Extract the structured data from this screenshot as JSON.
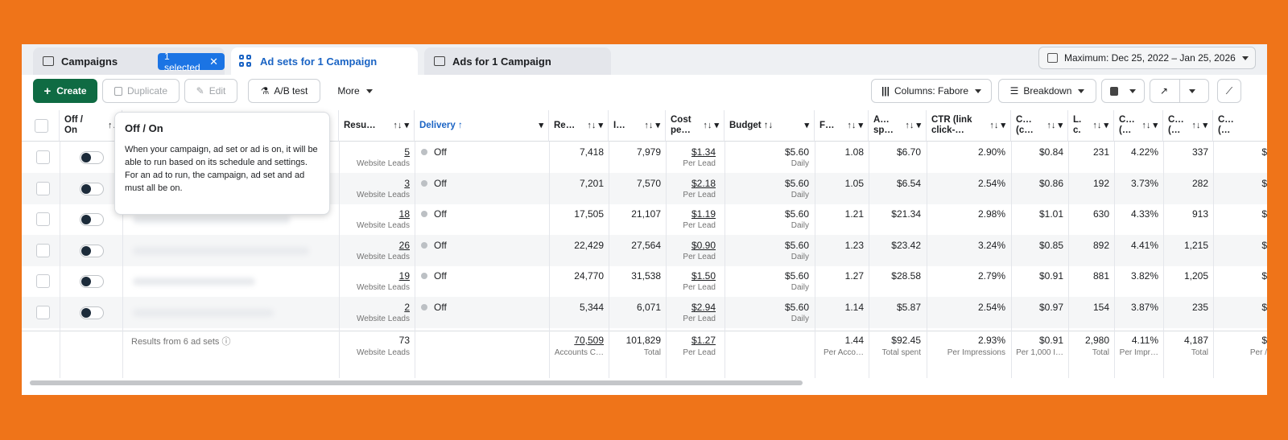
{
  "tabs": {
    "campaigns": "Campaigns",
    "selected_badge": "1 selected",
    "adsets": "Ad sets for 1 Campaign",
    "ads": "Ads for 1 Campaign"
  },
  "date_range": "Maximum: Dec 25, 2022 – Jan 25, 2026",
  "toolbar": {
    "create": "Create",
    "duplicate": "Duplicate",
    "edit": "Edit",
    "ab_test": "A/B test",
    "more": "More",
    "columns": "Columns: Fabore",
    "breakdown": "Breakdown"
  },
  "columns": [
    {
      "l1": "Off /",
      "l2": "On",
      "arrow": "↑↓"
    },
    {
      "l1": "Resu…",
      "l2": "",
      "arrow": "↑↓ ▾"
    },
    {
      "l1": "Delivery ↑",
      "l2": "",
      "arrow": "▾"
    },
    {
      "l1": "Re…",
      "l2": "",
      "arrow": "↑↓ ▾"
    },
    {
      "l1": "I…",
      "l2": "",
      "arrow": "↑↓ ▾"
    },
    {
      "l1": "Cost",
      "l2": "pe…",
      "arrow": "↑↓ ▾"
    },
    {
      "l1": "Budget ↑↓",
      "l2": "",
      "arrow": "▾"
    },
    {
      "l1": "F…",
      "l2": "",
      "arrow": "↑↓ ▾"
    },
    {
      "l1": "A…",
      "l2": "sp…",
      "arrow": "↑↓ ▾"
    },
    {
      "l1": "CTR (link",
      "l2": "click-…",
      "arrow": "↑↓ ▾"
    },
    {
      "l1": "C…",
      "l2": "(c…",
      "arrow": "↑↓ ▾"
    },
    {
      "l1": "L.",
      "l2": "c.",
      "arrow": "↑↓ ▾"
    },
    {
      "l1": "C…",
      "l2": "(…",
      "arrow": "↑↓ ▾"
    },
    {
      "l1": "C…",
      "l2": "(…",
      "arrow": "↑↓ ▾"
    },
    {
      "l1": "C…",
      "l2": "(…",
      "arrow": ""
    }
  ],
  "rows": [
    {
      "results": "5",
      "results_sub": "Website Leads",
      "delivery": "Off",
      "reach": "7,418",
      "impr": "7,979",
      "cost": "$1.34",
      "cost_sub": "Per Lead",
      "budget": "$5.60",
      "budget_sub": "Daily",
      "freq": "1.08",
      "spent": "$6.70",
      "ctr": "2.90%",
      "cpc": "$0.84",
      "lc": "231",
      "c1": "4.22%",
      "c2": "337",
      "c3": "$"
    },
    {
      "results": "3",
      "results_sub": "Website Leads",
      "delivery": "Off",
      "reach": "7,201",
      "impr": "7,570",
      "cost": "$2.18",
      "cost_sub": "Per Lead",
      "budget": "$5.60",
      "budget_sub": "Daily",
      "freq": "1.05",
      "spent": "$6.54",
      "ctr": "2.54%",
      "cpc": "$0.86",
      "lc": "192",
      "c1": "3.73%",
      "c2": "282",
      "c3": "$"
    },
    {
      "results": "18",
      "results_sub": "Website Leads",
      "delivery": "Off",
      "reach": "17,505",
      "impr": "21,107",
      "cost": "$1.19",
      "cost_sub": "Per Lead",
      "budget": "$5.60",
      "budget_sub": "Daily",
      "freq": "1.21",
      "spent": "$21.34",
      "ctr": "2.98%",
      "cpc": "$1.01",
      "lc": "630",
      "c1": "4.33%",
      "c2": "913",
      "c3": "$"
    },
    {
      "results": "26",
      "results_sub": "Website Leads",
      "delivery": "Off",
      "reach": "22,429",
      "impr": "27,564",
      "cost": "$0.90",
      "cost_sub": "Per Lead",
      "budget": "$5.60",
      "budget_sub": "Daily",
      "freq": "1.23",
      "spent": "$23.42",
      "ctr": "3.24%",
      "cpc": "$0.85",
      "lc": "892",
      "c1": "4.41%",
      "c2": "1,215",
      "c3": "$"
    },
    {
      "results": "19",
      "results_sub": "Website Leads",
      "delivery": "Off",
      "reach": "24,770",
      "impr": "31,538",
      "cost": "$1.50",
      "cost_sub": "Per Lead",
      "budget": "$5.60",
      "budget_sub": "Daily",
      "freq": "1.27",
      "spent": "$28.58",
      "ctr": "2.79%",
      "cpc": "$0.91",
      "lc": "881",
      "c1": "3.82%",
      "c2": "1,205",
      "c3": "$"
    },
    {
      "results": "2",
      "results_sub": "Website Leads",
      "delivery": "Off",
      "reach": "5,344",
      "impr": "6,071",
      "cost": "$2.94",
      "cost_sub": "Per Lead",
      "budget": "$5.60",
      "budget_sub": "Daily",
      "freq": "1.14",
      "spent": "$5.87",
      "ctr": "2.54%",
      "cpc": "$0.97",
      "lc": "154",
      "c1": "3.87%",
      "c2": "235",
      "c3": "$"
    }
  ],
  "totals": {
    "label": "Results from 6 ad sets",
    "results": "73",
    "results_sub": "Website Leads",
    "reach": "70,509",
    "reach_sub": "Accounts C…",
    "impr": "101,829",
    "impr_sub": "Total",
    "cost": "$1.27",
    "cost_sub": "Per Lead",
    "freq": "1.44",
    "freq_sub": "Per Acco…",
    "spent": "$92.45",
    "spent_sub": "Total spent",
    "ctr": "2.93%",
    "ctr_sub": "Per Impressions",
    "cpc": "$0.91",
    "cpc_sub": "Per 1,000 I…",
    "lc": "2,980",
    "lc_sub": "Total",
    "c1": "4.11%",
    "c1_sub": "Per Impr…",
    "c2": "4,187",
    "c2_sub": "Total",
    "c3": "$",
    "c3_sub": "Per /"
  },
  "tooltip": {
    "title": "Off / On",
    "body": "When your campaign, ad set or ad is on, it will be able to run based on its schedule and settings. For an ad to run, the campaign, ad set and ad must all be on."
  },
  "colors": {
    "frame": "#ef7419",
    "primary": "#1b74e4",
    "create": "#0f6b43"
  }
}
